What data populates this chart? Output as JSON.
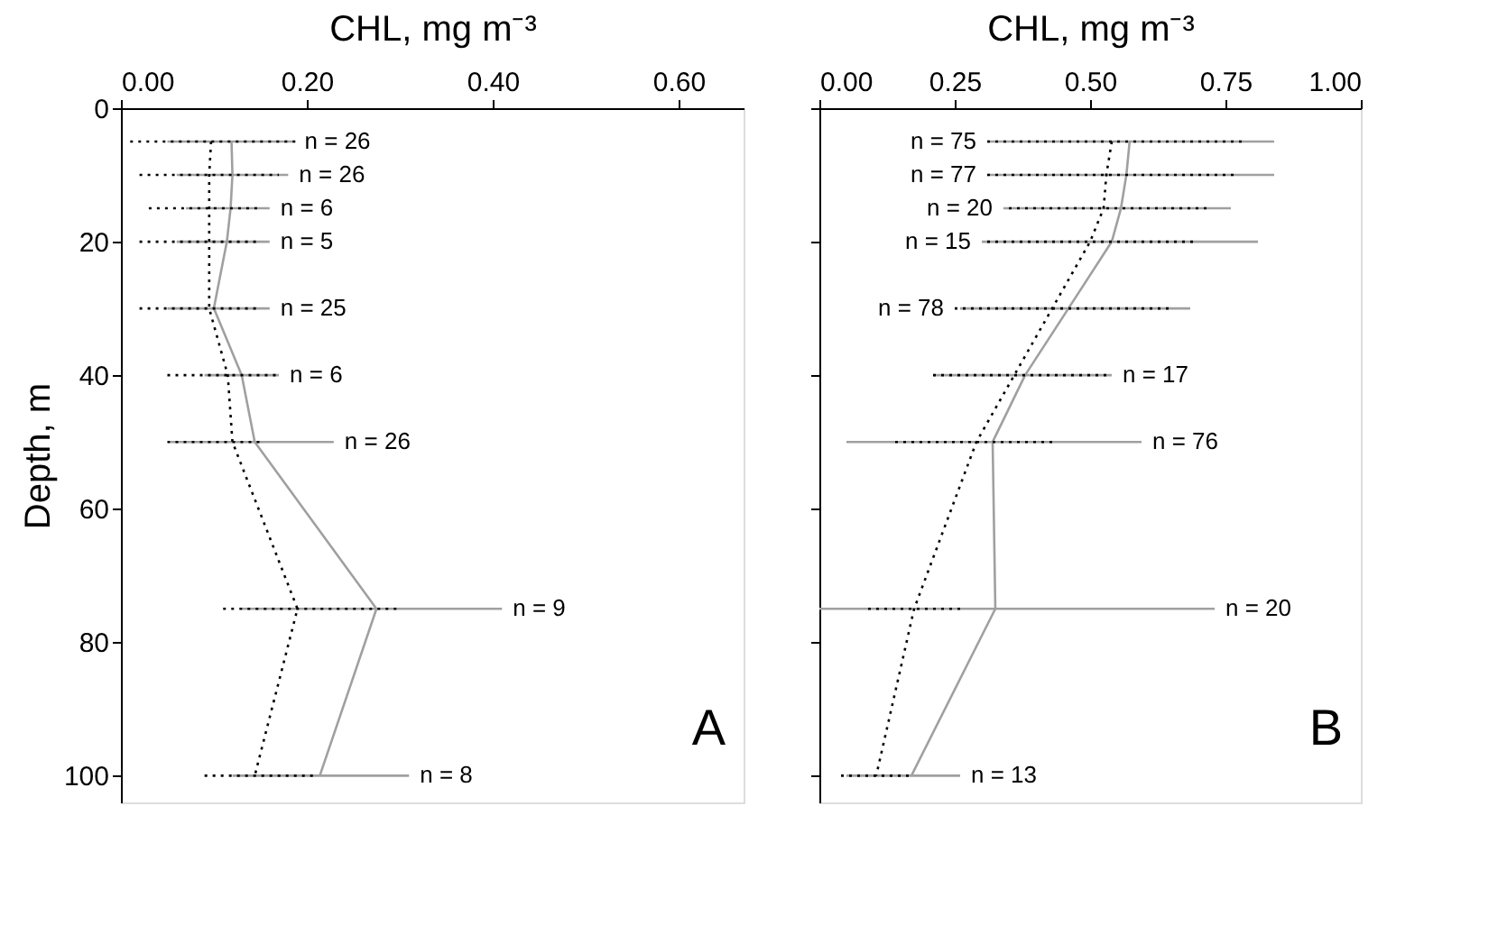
{
  "chart_data": [
    {
      "type": "line",
      "orientation": "horizontal",
      "xlabel": "CHL, mg m⁻³",
      "ylabel": "Depth, m",
      "xlim": [
        0,
        0.67
      ],
      "xticks": [
        {
          "value": 0,
          "label": "0.00"
        },
        {
          "value": 0.2,
          "label": "0.20"
        },
        {
          "value": 0.4,
          "label": "0.40"
        },
        {
          "value": 0.6,
          "label": "0.60"
        }
      ],
      "ylim": [
        104,
        0
      ],
      "yticks": [
        0,
        20,
        40,
        60,
        80,
        100
      ],
      "grid": false,
      "x": [
        5,
        10,
        15,
        20,
        30,
        40,
        50,
        75,
        100
      ],
      "series": [
        {
          "color": "#a0a0a0",
          "line_style": "solid",
          "values": [
            0.119,
            0.12,
            0.118,
            0.114,
            0.1,
            0.13,
            0.144,
            0.275,
            0.214
          ],
          "errors": [
            [
              0.05,
              0.186
            ],
            [
              0.06,
              0.18
            ],
            [
              0.07,
              0.16
            ],
            [
              0.06,
              0.16
            ],
            [
              0.05,
              0.16
            ],
            [
              0.09,
              0.17
            ],
            [
              0.053,
              0.229
            ],
            [
              0.13,
              0.41
            ],
            [
              0.12,
              0.31
            ]
          ]
        },
        {
          "color": "#000000",
          "line_style": "dotted",
          "values": [
            0.097,
            0.095,
            0.095,
            0.095,
            0.095,
            0.115,
            0.12,
            0.19,
            0.144
          ],
          "errors": [
            [
              0.01,
              0.19
            ],
            [
              0.02,
              0.17
            ],
            [
              0.03,
              0.15
            ],
            [
              0.02,
              0.15
            ],
            [
              0.02,
              0.15
            ],
            [
              0.05,
              0.17
            ],
            [
              0.05,
              0.15
            ],
            [
              0.11,
              0.3
            ],
            [
              0.09,
              0.21
            ]
          ]
        }
      ],
      "annotations": [
        {
          "text": "n = 26",
          "x": 0.186,
          "y": 5
        },
        {
          "text": "n = 26",
          "x": 0.18,
          "y": 10
        },
        {
          "text": "n = 6",
          "x": 0.16,
          "y": 15
        },
        {
          "text": "n = 5",
          "x": 0.16,
          "y": 20
        },
        {
          "text": "n = 25",
          "x": 0.16,
          "y": 30
        },
        {
          "text": "n = 6",
          "x": 0.17,
          "y": 40
        },
        {
          "text": "n = 26",
          "x": 0.229,
          "y": 50
        },
        {
          "text": "n = 9",
          "x": 0.41,
          "y": 75
        },
        {
          "text": "n = 8",
          "x": 0.31,
          "y": 100
        },
        "A"
      ]
    },
    {
      "type": "line",
      "orientation": "horizontal",
      "xlabel": "CHL, mg m⁻³",
      "xlim": [
        0,
        1
      ],
      "xticks": [
        {
          "value": 0,
          "label": "0.00"
        },
        {
          "value": 0.25,
          "label": "0.25"
        },
        {
          "value": 0.5,
          "label": "0.50"
        },
        {
          "value": 0.75,
          "label": "0.75"
        },
        {
          "value": 1,
          "label": "1.00"
        }
      ],
      "ylim": [
        104,
        0
      ],
      "yticks": [
        0,
        20,
        40,
        60,
        80,
        100
      ],
      "tick_labels": "x",
      "grid": false,
      "x": [
        5,
        10,
        15,
        20,
        30,
        40,
        50,
        75,
        100
      ],
      "series": [
        {
          "color": "#a0a0a0",
          "line_style": "solid",
          "values": [
            0.573,
            0.567,
            0.557,
            0.54,
            0.46,
            0.38,
            0.32,
            0.325,
            0.17
          ],
          "errors": [
            [
              0.31,
              0.84
            ],
            [
              0.31,
              0.84
            ],
            [
              0.34,
              0.76
            ],
            [
              0.3,
              0.81
            ],
            [
              0.26,
              0.685
            ],
            [
              0.21,
              0.54
            ],
            [
              0.05,
              0.595
            ],
            [
              0.0,
              0.73
            ],
            [
              0.05,
              0.26
            ]
          ]
        },
        {
          "color": "#000000",
          "line_style": "dotted",
          "values": [
            0.54,
            0.53,
            0.525,
            0.5,
            0.43,
            0.36,
            0.29,
            0.175,
            0.105
          ],
          "errors": [
            [
              0.31,
              0.79
            ],
            [
              0.31,
              0.77
            ],
            [
              0.35,
              0.72
            ],
            [
              0.31,
              0.69
            ],
            [
              0.25,
              0.65
            ],
            [
              0.21,
              0.53
            ],
            [
              0.14,
              0.43
            ],
            [
              0.09,
              0.27
            ],
            [
              0.04,
              0.175
            ]
          ]
        }
      ],
      "annotations": [
        {
          "text": "n = 75",
          "x": 0.31,
          "y": 5
        },
        {
          "text": "n = 77",
          "x": 0.31,
          "y": 10
        },
        {
          "text": "n = 20",
          "x": 0.34,
          "y": 15
        },
        {
          "text": "n = 15",
          "x": 0.3,
          "y": 20
        },
        {
          "text": "n = 78",
          "x": 0.25,
          "y": 30
        },
        {
          "text": "n = 17",
          "x": 0.54,
          "y": 40
        },
        {
          "text": "n = 76",
          "x": 0.595,
          "y": 50
        },
        {
          "text": "n = 20",
          "x": 0.73,
          "y": 75
        },
        {
          "text": "n = 13",
          "x": 0.26,
          "y": 100
        },
        "B"
      ]
    }
  ]
}
